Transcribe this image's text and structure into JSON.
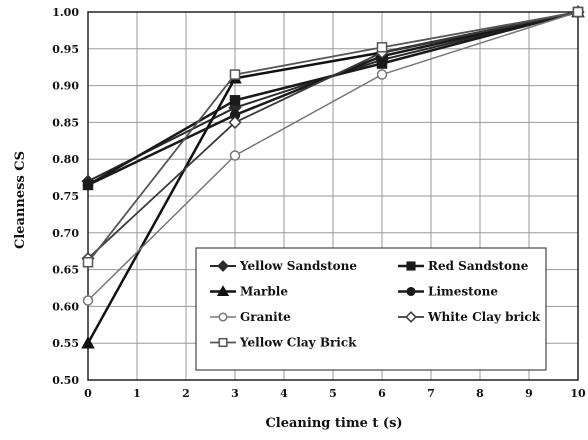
{
  "chart_data": {
    "type": "line",
    "title": "",
    "xlabel": "Cleaning time t (s)",
    "ylabel": "Cleanness CS",
    "xlim": [
      0,
      10
    ],
    "ylim": [
      0.5,
      1.0
    ],
    "xticks": [
      "0",
      "1",
      "2",
      "3",
      "4",
      "5",
      "6",
      "7",
      "8",
      "9",
      "10"
    ],
    "yticks": [
      "0.50",
      "0.55",
      "0.60",
      "0.65",
      "0.70",
      "0.75",
      "0.80",
      "0.85",
      "0.90",
      "0.95",
      "1.00"
    ],
    "grid": true,
    "legend_position": "bottom-right",
    "x": [
      0,
      3,
      6,
      10
    ],
    "series": [
      {
        "name": "Yellow Sandstone",
        "values": [
          0.77,
          0.87,
          0.935,
          1.0
        ],
        "color": "#2a2a2a",
        "marker": "diamond",
        "filled": true,
        "width": 2
      },
      {
        "name": "Red Sandstone",
        "values": [
          0.765,
          0.88,
          0.93,
          1.0
        ],
        "color": "#1a1a1a",
        "marker": "square",
        "filled": true,
        "width": 2.5
      },
      {
        "name": "Marble",
        "values": [
          0.55,
          0.91,
          0.945,
          1.0
        ],
        "color": "#111111",
        "marker": "triangle",
        "filled": true,
        "width": 2.5
      },
      {
        "name": "Limestone",
        "values": [
          0.765,
          0.86,
          0.94,
          1.0
        ],
        "color": "#1a1a1a",
        "marker": "circle",
        "filled": true,
        "width": 2.5
      },
      {
        "name": "Granite",
        "values": [
          0.608,
          0.805,
          0.915,
          1.0
        ],
        "color": "#777777",
        "marker": "circle",
        "filled": false,
        "width": 1.5
      },
      {
        "name": "White Clay brick",
        "values": [
          0.665,
          0.85,
          0.945,
          1.0
        ],
        "color": "#3a3a3a",
        "marker": "diamond",
        "filled": false,
        "width": 1.8
      },
      {
        "name": "Yellow Clay Brick",
        "values": [
          0.66,
          0.915,
          0.952,
          1.0
        ],
        "color": "#555555",
        "marker": "square",
        "filled": false,
        "width": 1.8
      }
    ]
  }
}
